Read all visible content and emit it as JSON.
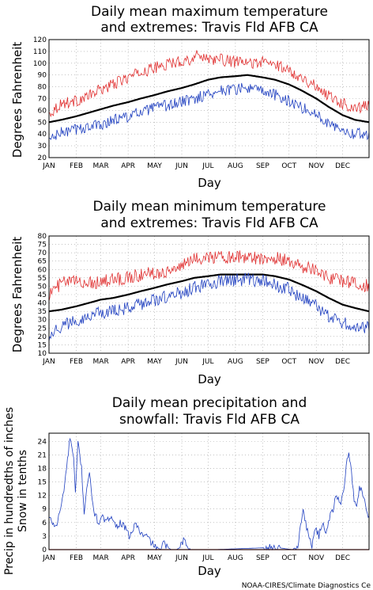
{
  "credit": "NOAA-CIRES/Climate Diagnostics Ce",
  "colors": {
    "mean": "#000000",
    "max_extreme": "#e03030",
    "min_extreme": "#2040c0",
    "grid": "#a0a0a0",
    "zero": "#e03030"
  },
  "chart_data": [
    {
      "type": "line",
      "title_lines": [
        "Daily mean maximum temperature",
        "and extremes: Travis Fld AFB CA"
      ],
      "xlabel": "Day",
      "ylabel": "Degrees Fahrenheit",
      "x_ticks": [
        "JAN",
        "FEB",
        "MAR",
        "APR",
        "MAY",
        "JUN",
        "JUL",
        "AUG",
        "SEP",
        "OCT",
        "NOV",
        "DEC"
      ],
      "y_ticks": [
        "20",
        "30",
        "40",
        "50",
        "60",
        "70",
        "80",
        "90",
        "100",
        "110",
        "120"
      ],
      "ylim": [
        20,
        120
      ],
      "grid": true,
      "series": [
        {
          "role": "max_extreme",
          "anchors": [
            [
              1,
              57
            ],
            [
              15,
              66
            ],
            [
              32,
              68
            ],
            [
              46,
              72
            ],
            [
              60,
              78
            ],
            [
              74,
              82
            ],
            [
              91,
              88
            ],
            [
              105,
              92
            ],
            [
              121,
              96
            ],
            [
              135,
              99
            ],
            [
              152,
              102
            ],
            [
              166,
              104
            ],
            [
              172,
              108
            ],
            [
              182,
              104
            ],
            [
              196,
              103
            ],
            [
              213,
              101
            ],
            [
              227,
              100
            ],
            [
              244,
              101
            ],
            [
              258,
              99
            ],
            [
              274,
              94
            ],
            [
              288,
              88
            ],
            [
              305,
              80
            ],
            [
              319,
              73
            ],
            [
              335,
              66
            ],
            [
              349,
              62
            ],
            [
              365,
              64
            ]
          ]
        },
        {
          "role": "mean",
          "anchors": [
            [
              1,
              50
            ],
            [
              15,
              52
            ],
            [
              32,
              55
            ],
            [
              46,
              58
            ],
            [
              60,
              61
            ],
            [
              74,
              64
            ],
            [
              91,
              67
            ],
            [
              105,
              70
            ],
            [
              121,
              73
            ],
            [
              135,
              76
            ],
            [
              152,
              79
            ],
            [
              166,
              82
            ],
            [
              182,
              86
            ],
            [
              196,
              88
            ],
            [
              213,
              89
            ],
            [
              227,
              90
            ],
            [
              244,
              88
            ],
            [
              258,
              86
            ],
            [
              274,
              82
            ],
            [
              288,
              77
            ],
            [
              305,
              70
            ],
            [
              319,
              63
            ],
            [
              335,
              56
            ],
            [
              349,
              52
            ],
            [
              365,
              50
            ]
          ]
        },
        {
          "role": "min_extreme",
          "anchors": [
            [
              1,
              35
            ],
            [
              15,
              41
            ],
            [
              32,
              44
            ],
            [
              46,
              46
            ],
            [
              60,
              48
            ],
            [
              74,
              52
            ],
            [
              91,
              55
            ],
            [
              105,
              58
            ],
            [
              121,
              62
            ],
            [
              135,
              64
            ],
            [
              152,
              67
            ],
            [
              166,
              70
            ],
            [
              182,
              74
            ],
            [
              196,
              77
            ],
            [
              213,
              78
            ],
            [
              227,
              79
            ],
            [
              244,
              76
            ],
            [
              258,
              73
            ],
            [
              274,
              68
            ],
            [
              288,
              63
            ],
            [
              305,
              56
            ],
            [
              319,
              50
            ],
            [
              335,
              44
            ],
            [
              349,
              40
            ],
            [
              365,
              40
            ]
          ]
        }
      ]
    },
    {
      "type": "line",
      "title_lines": [
        "Daily mean minimum temperature",
        "and extremes: Travis Fld AFB CA"
      ],
      "xlabel": "Day",
      "ylabel": "Degrees Fahrenheit",
      "x_ticks": [
        "JAN",
        "FEB",
        "MAR",
        "APR",
        "MAY",
        "JUN",
        "JUL",
        "AUG",
        "SEP",
        "OCT",
        "NOV",
        "DEC"
      ],
      "y_ticks": [
        "10",
        "15",
        "20",
        "25",
        "30",
        "35",
        "40",
        "45",
        "50",
        "55",
        "60",
        "65",
        "70",
        "75",
        "80"
      ],
      "ylim": [
        10,
        80
      ],
      "grid": true,
      "series": [
        {
          "role": "max_extreme",
          "anchors": [
            [
              1,
              45
            ],
            [
              15,
              52
            ],
            [
              32,
              53
            ],
            [
              46,
              52
            ],
            [
              60,
              53
            ],
            [
              74,
              54
            ],
            [
              91,
              55
            ],
            [
              105,
              57
            ],
            [
              121,
              58
            ],
            [
              135,
              59
            ],
            [
              152,
              62
            ],
            [
              166,
              66
            ],
            [
              182,
              68
            ],
            [
              196,
              67
            ],
            [
              213,
              68
            ],
            [
              227,
              67
            ],
            [
              244,
              67
            ],
            [
              258,
              67
            ],
            [
              274,
              65
            ],
            [
              288,
              62
            ],
            [
              305,
              60
            ],
            [
              319,
              55
            ],
            [
              335,
              53
            ],
            [
              349,
              52
            ],
            [
              365,
              50
            ]
          ]
        },
        {
          "role": "mean",
          "anchors": [
            [
              1,
              35
            ],
            [
              15,
              36
            ],
            [
              32,
              38
            ],
            [
              46,
              40
            ],
            [
              60,
              42
            ],
            [
              74,
              43
            ],
            [
              91,
              45
            ],
            [
              105,
              47
            ],
            [
              121,
              49
            ],
            [
              135,
              51
            ],
            [
              152,
              53
            ],
            [
              166,
              55
            ],
            [
              182,
              56
            ],
            [
              196,
              57
            ],
            [
              213,
              57
            ],
            [
              227,
              57
            ],
            [
              244,
              57
            ],
            [
              258,
              56
            ],
            [
              274,
              54
            ],
            [
              288,
              51
            ],
            [
              305,
              47
            ],
            [
              319,
              43
            ],
            [
              335,
              39
            ],
            [
              349,
              37
            ],
            [
              365,
              35
            ]
          ]
        },
        {
          "role": "min_extreme",
          "anchors": [
            [
              1,
              21
            ],
            [
              15,
              26
            ],
            [
              32,
              30
            ],
            [
              46,
              32
            ],
            [
              60,
              34
            ],
            [
              74,
              35
            ],
            [
              91,
              37
            ],
            [
              105,
              39
            ],
            [
              121,
              42
            ],
            [
              135,
              44
            ],
            [
              152,
              46
            ],
            [
              166,
              49
            ],
            [
              182,
              51
            ],
            [
              196,
              53
            ],
            [
              213,
              54
            ],
            [
              227,
              54
            ],
            [
              244,
              53
            ],
            [
              258,
              51
            ],
            [
              274,
              48
            ],
            [
              288,
              43
            ],
            [
              305,
              38
            ],
            [
              319,
              32
            ],
            [
              335,
              28
            ],
            [
              349,
              26
            ],
            [
              365,
              25
            ]
          ]
        }
      ]
    },
    {
      "type": "line",
      "title_lines": [
        "Daily mean precipitation and",
        "snowfall: Travis Fld AFB CA"
      ],
      "xlabel": "Day",
      "ylabel_lines": [
        "Precip in hundredths of inches",
        "Snow in tenths"
      ],
      "x_ticks": [
        "JAN",
        "FEB",
        "MAR",
        "APR",
        "MAY",
        "JUN",
        "JUL",
        "AUG",
        "SEP",
        "OCT",
        "NOV",
        "DEC"
      ],
      "y_ticks": [
        "0",
        "3",
        "6",
        "9",
        "12",
        "15",
        "18",
        "21",
        "24"
      ],
      "ylim": [
        0,
        25.8
      ],
      "grid": true,
      "series": [
        {
          "role": "precip",
          "points": [
            [
              1,
              7
            ],
            [
              5,
              6
            ],
            [
              9,
              5
            ],
            [
              13,
              8
            ],
            [
              17,
              12
            ],
            [
              21,
              18
            ],
            [
              25,
              25
            ],
            [
              29,
              20
            ],
            [
              31,
              12
            ],
            [
              34,
              24
            ],
            [
              38,
              18
            ],
            [
              41,
              8
            ],
            [
              44,
              14
            ],
            [
              47,
              17
            ],
            [
              50,
              11
            ],
            [
              53,
              8
            ],
            [
              57,
              6
            ],
            [
              62,
              7
            ],
            [
              67,
              6
            ],
            [
              72,
              8
            ],
            [
              77,
              5
            ],
            [
              82,
              6
            ],
            [
              87,
              5
            ],
            [
              92,
              3
            ],
            [
              96,
              4
            ],
            [
              100,
              6
            ],
            [
              104,
              4
            ],
            [
              108,
              3
            ],
            [
              112,
              3
            ],
            [
              116,
              2
            ],
            [
              120,
              1
            ],
            [
              124,
              0.5
            ],
            [
              128,
              0
            ],
            [
              132,
              1.5
            ],
            [
              136,
              0.5
            ],
            [
              140,
              0
            ],
            [
              146,
              0
            ],
            [
              150,
              0.5
            ],
            [
              154,
              2
            ],
            [
              158,
              1
            ],
            [
              162,
              0
            ],
            [
              170,
              0
            ],
            [
              190,
              0
            ],
            [
              230,
              0.3
            ],
            [
              260,
              0.5
            ],
            [
              270,
              0.2
            ],
            [
              278,
              0
            ],
            [
              284,
              1
            ],
            [
              287,
              5
            ],
            [
              290,
              9
            ],
            [
              293,
              6
            ],
            [
              296,
              3
            ],
            [
              300,
              1
            ],
            [
              304,
              5
            ],
            [
              308,
              3
            ],
            [
              312,
              6
            ],
            [
              316,
              4
            ],
            [
              320,
              7
            ],
            [
              324,
              9
            ],
            [
              328,
              12
            ],
            [
              332,
              10
            ],
            [
              336,
              13
            ],
            [
              340,
              20
            ],
            [
              342,
              22
            ],
            [
              345,
              17
            ],
            [
              348,
              11
            ],
            [
              351,
              9
            ],
            [
              354,
              14
            ],
            [
              357,
              13
            ],
            [
              360,
              11
            ],
            [
              363,
              8
            ],
            [
              365,
              7
            ]
          ]
        },
        {
          "role": "snow",
          "points": [
            [
              1,
              0
            ],
            [
              365,
              0
            ]
          ]
        }
      ]
    }
  ]
}
